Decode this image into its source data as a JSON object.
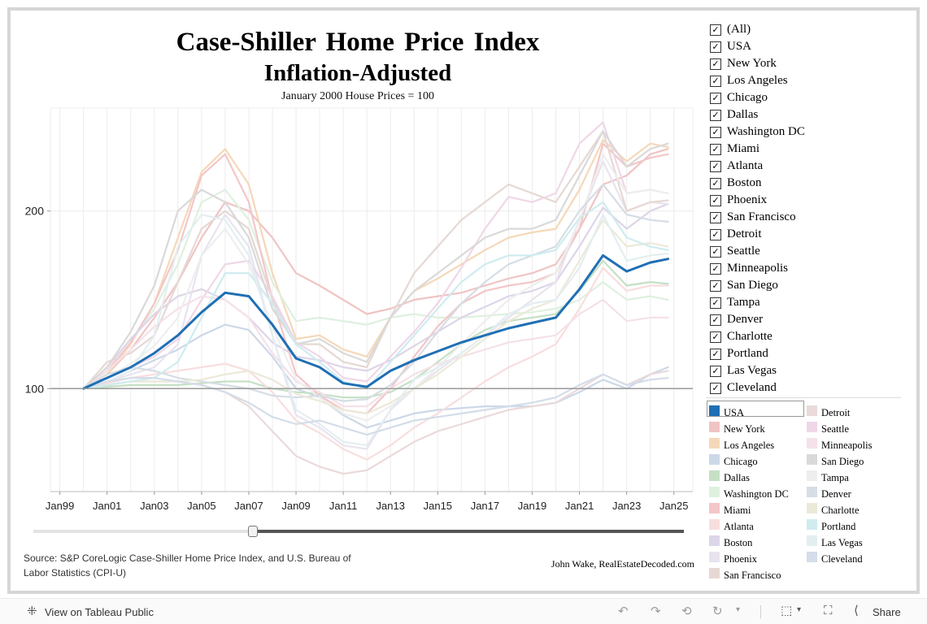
{
  "title": "Case-Shiller Home Price Index",
  "subtitle": "Inflation-Adjusted",
  "note": "January 2000 House Prices = 100",
  "source": "Source: S&P CoreLogic Case-Shiller Home Price Index, and U.S. Bureau of Labor Statistics (CPI-U)",
  "credit": "John Wake, RealEstateDecoded.com",
  "date_slider": {
    "start_fraction": 0.34,
    "end_fraction": 1.0
  },
  "filter": {
    "check_glyph": "☑",
    "items": [
      "(All)",
      "USA",
      "New York",
      "Los Angeles",
      "Chicago",
      "Dallas",
      "Washington DC",
      "Miami",
      "Atlanta",
      "Boston",
      "Phoenix",
      "San Francisco",
      "Detroit",
      "Seattle",
      "Minneapolis",
      "San Diego",
      "Tampa",
      "Denver",
      "Charlotte",
      "Portland",
      "Las Vegas",
      "Cleveland"
    ]
  },
  "legend": {
    "selected": "USA",
    "items": [
      {
        "name": "USA",
        "color": "#1f6fb4"
      },
      {
        "name": "New York",
        "color": "#f0c4c4"
      },
      {
        "name": "Los Angeles",
        "color": "#f5d8b8"
      },
      {
        "name": "Chicago",
        "color": "#ccd8e8"
      },
      {
        "name": "Dallas",
        "color": "#c5e0c5"
      },
      {
        "name": "Washington DC",
        "color": "#dff0df"
      },
      {
        "name": "Miami",
        "color": "#f3c6c8"
      },
      {
        "name": "Atlanta",
        "color": "#f8dede"
      },
      {
        "name": "Boston",
        "color": "#ddd5e8"
      },
      {
        "name": "Phoenix",
        "color": "#e9e3ef"
      },
      {
        "name": "San Francisco",
        "color": "#e6d8d4"
      },
      {
        "name": "Detroit",
        "color": "#eadada"
      },
      {
        "name": "Seattle",
        "color": "#efd7e7"
      },
      {
        "name": "Minneapolis",
        "color": "#f5e1e9"
      },
      {
        "name": "San Diego",
        "color": "#d9d9d9"
      },
      {
        "name": "Tampa",
        "color": "#eeeeee"
      },
      {
        "name": "Denver",
        "color": "#d6dde5"
      },
      {
        "name": "Charlotte",
        "color": "#ece9d9"
      },
      {
        "name": "Portland",
        "color": "#cfecef"
      },
      {
        "name": "Las Vegas",
        "color": "#e3eef1"
      },
      {
        "name": "Cleveland",
        "color": "#d4dde9"
      }
    ]
  },
  "toolbar": {
    "view_label": "View on Tableau Public",
    "share_label": "Share",
    "icons": [
      "tableau-icon",
      "undo-icon",
      "redo-icon",
      "revert-icon",
      "refresh-icon",
      "download-icon",
      "fullscreen-icon",
      "share-icon"
    ]
  },
  "chart_data": {
    "type": "line",
    "title": "Case-Shiller Home Price Index",
    "subtitle": "Inflation-Adjusted",
    "xlabel": "",
    "ylabel": "",
    "xlim": [
      1998.6,
      2025.8
    ],
    "ylim": [
      42,
      258
    ],
    "yticks": [
      100,
      200
    ],
    "x_ticks": [
      {
        "label": "Jan99",
        "x": 1999
      },
      {
        "label": "Jan01",
        "x": 2001
      },
      {
        "label": "Jan03",
        "x": 2003
      },
      {
        "label": "Jan05",
        "x": 2005
      },
      {
        "label": "Jan07",
        "x": 2007
      },
      {
        "label": "Jan09",
        "x": 2009
      },
      {
        "label": "Jan11",
        "x": 2011
      },
      {
        "label": "Jan13",
        "x": 2013
      },
      {
        "label": "Jan15",
        "x": 2015
      },
      {
        "label": "Jan17",
        "x": 2017
      },
      {
        "label": "Jan19",
        "x": 2019
      },
      {
        "label": "Jan21",
        "x": 2021
      },
      {
        "label": "Jan23",
        "x": 2023
      },
      {
        "label": "Jan25",
        "x": 2025
      }
    ],
    "reference_line": 100,
    "grid": "vertical",
    "x": [
      2000,
      2001,
      2002,
      2003,
      2004,
      2005,
      2006,
      2007,
      2008,
      2009,
      2010,
      2011,
      2012,
      2013,
      2014,
      2015,
      2016,
      2017,
      2018,
      2019,
      2020,
      2021,
      2022,
      2023,
      2024,
      2024.75
    ],
    "series": [
      {
        "name": "USA",
        "values": [
          100,
          106,
          112,
          120,
          130,
          143,
          154,
          152,
          136,
          117,
          112,
          103,
          101,
          110,
          116,
          121,
          126,
          130,
          134,
          137,
          140,
          156,
          175,
          166,
          171,
          173
        ]
      },
      {
        "name": "New York",
        "values": [
          100,
          108,
          122,
          140,
          160,
          185,
          205,
          200,
          185,
          165,
          158,
          150,
          142,
          145,
          150,
          152,
          154,
          158,
          162,
          165,
          170,
          190,
          215,
          220,
          232,
          235
        ]
      },
      {
        "name": "Los Angeles",
        "values": [
          100,
          108,
          125,
          148,
          185,
          222,
          235,
          215,
          165,
          128,
          130,
          122,
          118,
          140,
          155,
          162,
          170,
          178,
          185,
          188,
          190,
          212,
          240,
          228,
          238,
          236
        ]
      },
      {
        "name": "Chicago",
        "values": [
          100,
          104,
          110,
          116,
          122,
          130,
          136,
          133,
          118,
          100,
          95,
          85,
          78,
          82,
          86,
          88,
          89,
          90,
          90,
          90,
          92,
          98,
          105,
          100,
          108,
          112
        ]
      },
      {
        "name": "Dallas",
        "values": [
          100,
          101,
          102,
          102,
          102,
          103,
          104,
          104,
          100,
          98,
          97,
          95,
          95,
          98,
          105,
          115,
          125,
          133,
          138,
          140,
          142,
          155,
          172,
          158,
          160,
          159
        ]
      },
      {
        "name": "Washington DC",
        "values": [
          100,
          110,
          126,
          145,
          170,
          205,
          212,
          195,
          160,
          138,
          140,
          138,
          136,
          140,
          142,
          140,
          140,
          141,
          142,
          143,
          145,
          150,
          160,
          150,
          152,
          150
        ]
      },
      {
        "name": "Miami",
        "values": [
          100,
          110,
          126,
          148,
          178,
          220,
          232,
          205,
          150,
          108,
          96,
          88,
          86,
          100,
          118,
          135,
          148,
          155,
          158,
          160,
          165,
          190,
          238,
          225,
          230,
          232
        ]
      },
      {
        "name": "Atlanta",
        "values": [
          100,
          103,
          106,
          108,
          110,
          112,
          114,
          110,
          98,
          82,
          75,
          66,
          60,
          68,
          78,
          86,
          95,
          104,
          112,
          118,
          125,
          145,
          168,
          155,
          158,
          158
        ]
      },
      {
        "name": "Boston",
        "values": [
          100,
          112,
          128,
          142,
          152,
          156,
          150,
          140,
          126,
          118,
          116,
          112,
          110,
          116,
          124,
          132,
          140,
          146,
          152,
          155,
          160,
          180,
          202,
          190,
          200,
          204
        ]
      },
      {
        "name": "Phoenix",
        "values": [
          100,
          104,
          108,
          112,
          125,
          175,
          198,
          180,
          130,
          85,
          78,
          68,
          66,
          88,
          100,
          110,
          120,
          130,
          140,
          150,
          160,
          195,
          228,
          200,
          205,
          204
        ]
      },
      {
        "name": "San Francisco",
        "values": [
          100,
          115,
          120,
          130,
          160,
          190,
          200,
          190,
          150,
          125,
          125,
          115,
          112,
          140,
          165,
          180,
          195,
          205,
          215,
          210,
          205,
          225,
          245,
          200,
          205,
          206
        ]
      },
      {
        "name": "Detroit",
        "values": [
          100,
          102,
          104,
          104,
          104,
          102,
          98,
          90,
          76,
          62,
          56,
          52,
          54,
          62,
          70,
          76,
          80,
          84,
          88,
          90,
          92,
          100,
          108,
          102,
          108,
          110
        ]
      },
      {
        "name": "Seattle",
        "values": [
          100,
          106,
          112,
          118,
          128,
          150,
          170,
          172,
          152,
          126,
          118,
          106,
          104,
          118,
          132,
          148,
          168,
          190,
          208,
          205,
          210,
          238,
          250,
          210,
          212,
          210
        ]
      },
      {
        "name": "Minneapolis",
        "values": [
          100,
          110,
          122,
          135,
          145,
          152,
          150,
          140,
          120,
          104,
          98,
          90,
          90,
          100,
          108,
          114,
          118,
          122,
          126,
          128,
          130,
          142,
          150,
          138,
          140,
          140
        ]
      },
      {
        "name": "San Diego",
        "values": [
          100,
          112,
          132,
          158,
          200,
          212,
          205,
          185,
          145,
          125,
          128,
          120,
          115,
          140,
          155,
          165,
          175,
          185,
          190,
          190,
          195,
          220,
          245,
          225,
          235,
          238
        ]
      },
      {
        "name": "Tampa",
        "values": [
          100,
          106,
          114,
          124,
          140,
          175,
          190,
          170,
          135,
          105,
          95,
          86,
          82,
          90,
          100,
          112,
          125,
          138,
          150,
          158,
          165,
          195,
          232,
          210,
          212,
          210
        ]
      },
      {
        "name": "Denver",
        "values": [
          100,
          108,
          112,
          110,
          106,
          104,
          102,
          100,
          96,
          95,
          96,
          93,
          94,
          102,
          115,
          132,
          148,
          160,
          170,
          175,
          180,
          200,
          215,
          198,
          195,
          194
        ]
      },
      {
        "name": "Charlotte",
        "values": [
          100,
          102,
          104,
          104,
          104,
          105,
          108,
          110,
          105,
          97,
          93,
          88,
          86,
          92,
          100,
          108,
          118,
          128,
          138,
          145,
          150,
          172,
          195,
          180,
          182,
          180
        ]
      },
      {
        "name": "Portland",
        "values": [
          100,
          102,
          104,
          106,
          115,
          140,
          165,
          165,
          148,
          125,
          115,
          104,
          100,
          115,
          130,
          145,
          160,
          170,
          175,
          175,
          178,
          196,
          205,
          185,
          180,
          178
        ]
      },
      {
        "name": "Las Vegas",
        "values": [
          100,
          104,
          110,
          130,
          180,
          198,
          195,
          175,
          130,
          88,
          80,
          70,
          68,
          88,
          105,
          112,
          120,
          130,
          142,
          148,
          150,
          168,
          198,
          172,
          175,
          176
        ]
      },
      {
        "name": "Cleveland",
        "values": [
          100,
          104,
          106,
          106,
          104,
          102,
          98,
          92,
          84,
          80,
          82,
          78,
          74,
          78,
          82,
          84,
          86,
          88,
          90,
          92,
          95,
          102,
          108,
          102,
          105,
          106
        ]
      }
    ]
  }
}
